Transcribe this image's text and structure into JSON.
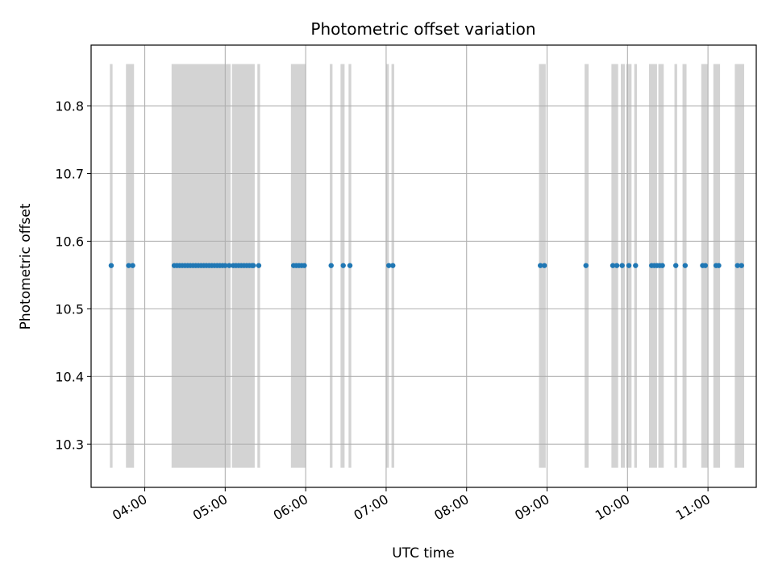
{
  "chart_data": {
    "type": "scatter",
    "title": "Photometric offset variation",
    "xlabel": "UTC time",
    "ylabel": "Photometric offset",
    "x_unit": "UTC time (HH:MM)",
    "xlim": [
      "03:20",
      "11:36"
    ],
    "ylim": [
      10.236,
      10.89
    ],
    "x_ticks": [
      "04:00",
      "05:00",
      "06:00",
      "07:00",
      "08:00",
      "09:00",
      "10:00",
      "11:00"
    ],
    "y_ticks": [
      10.3,
      10.4,
      10.5,
      10.6,
      10.7,
      10.8
    ],
    "grid": true,
    "shaded_spans": {
      "color": "#d3d3d3",
      "y_range": [
        10.265,
        10.862
      ],
      "spans": [
        [
          "03:34",
          "03:36"
        ],
        [
          "03:46",
          "03:52"
        ],
        [
          "04:20",
          "05:04"
        ],
        [
          "05:05",
          "05:22"
        ],
        [
          "05:24",
          "05:26"
        ],
        [
          "05:49",
          "06:00"
        ],
        [
          "06:18",
          "06:20"
        ],
        [
          "06:26",
          "06:29"
        ],
        [
          "06:32",
          "06:34"
        ],
        [
          "07:00",
          "07:02"
        ],
        [
          "07:04",
          "07:06"
        ],
        [
          "08:54",
          "08:59"
        ],
        [
          "09:28",
          "09:31"
        ],
        [
          "09:48",
          "09:53"
        ],
        [
          "09:55",
          "09:58"
        ],
        [
          "09:59",
          "10:03"
        ],
        [
          "10:05",
          "10:07"
        ],
        [
          "10:16",
          "10:22"
        ],
        [
          "10:23",
          "10:27"
        ],
        [
          "10:35",
          "10:37"
        ],
        [
          "10:41",
          "10:44"
        ],
        [
          "10:55",
          "11:00"
        ],
        [
          "11:04",
          "11:09"
        ],
        [
          "11:20",
          "11:27"
        ]
      ]
    },
    "series": [
      {
        "color": "#1f77b4",
        "marker": "circle",
        "x": [
          "03:35",
          "03:48",
          "03:51",
          "04:22",
          "04:24",
          "04:26",
          "04:28",
          "04:30",
          "04:32",
          "04:34",
          "04:36",
          "04:38",
          "04:40",
          "04:42",
          "04:44",
          "04:46",
          "04:48",
          "04:50",
          "04:52",
          "04:54",
          "04:56",
          "04:58",
          "05:00",
          "05:03",
          "05:06",
          "05:08",
          "05:10",
          "05:12",
          "05:14",
          "05:16",
          "05:18",
          "05:20",
          "05:21",
          "05:25",
          "05:51",
          "05:53",
          "05:55",
          "05:57",
          "05:59",
          "06:19",
          "06:28",
          "06:33",
          "07:02",
          "07:05",
          "08:55",
          "08:58",
          "09:29",
          "09:49",
          "09:52",
          "09:56",
          "10:01",
          "10:06",
          "10:18",
          "10:20",
          "10:22",
          "10:24",
          "10:26",
          "10:36",
          "10:43",
          "10:56",
          "10:58",
          "11:06",
          "11:08",
          "11:22",
          "11:25"
        ],
        "y": [
          10.564,
          10.564,
          10.564,
          10.564,
          10.564,
          10.564,
          10.564,
          10.564,
          10.564,
          10.564,
          10.564,
          10.564,
          10.564,
          10.564,
          10.564,
          10.564,
          10.564,
          10.564,
          10.564,
          10.564,
          10.564,
          10.564,
          10.564,
          10.564,
          10.564,
          10.564,
          10.564,
          10.564,
          10.564,
          10.564,
          10.564,
          10.564,
          10.564,
          10.564,
          10.564,
          10.564,
          10.564,
          10.564,
          10.564,
          10.564,
          10.564,
          10.564,
          10.564,
          10.564,
          10.564,
          10.564,
          10.564,
          10.564,
          10.564,
          10.564,
          10.564,
          10.564,
          10.564,
          10.564,
          10.564,
          10.564,
          10.564,
          10.564,
          10.564,
          10.564,
          10.564,
          10.564,
          10.564,
          10.564,
          10.564
        ]
      }
    ]
  }
}
